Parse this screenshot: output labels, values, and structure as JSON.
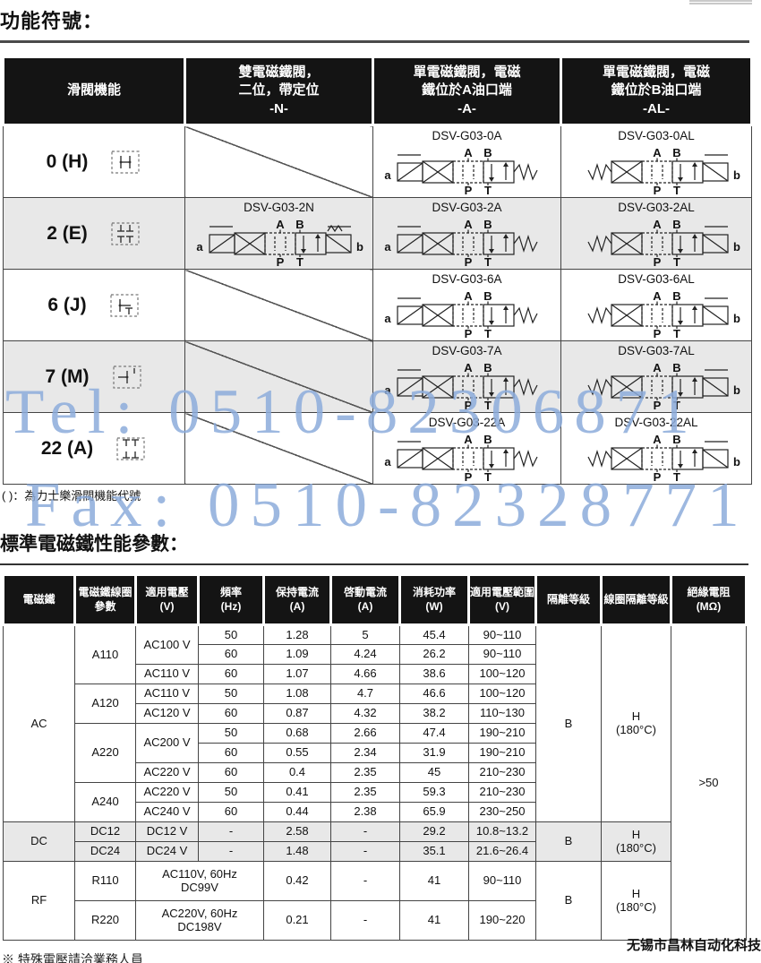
{
  "page": {
    "title1": "功能符號：",
    "note_under_table1": "( )：為力士樂滑閥機能代號",
    "title2": "標準電磁鐵性能參數：",
    "footer_company": "无锡市昌林自动化科技",
    "footer_note": "※ 特殊電壓請洽業務人員",
    "watermark_tel": "Tel: 0510-82306871",
    "watermark_fax": "Fax: 0510-82328771",
    "watermark_color": "#8cabda",
    "header_bg": "#141414",
    "row_gray": "#e8e8e8"
  },
  "table1": {
    "headers": {
      "col1": "滑閥機能",
      "col2_line1": "雙電磁鐵閥，",
      "col2_line2": "二位，帶定位",
      "col2_code": "-N-",
      "col3_line1": "單電磁鐵閥，電磁",
      "col3_line2": "鐵位於A油口端",
      "col3_code": "-A-",
      "col4_line1": "單電磁鐵閥，電磁",
      "col4_line2": "鐵位於B油口端",
      "col4_code": "-AL-"
    },
    "port_labels": {
      "a": "a",
      "b": "b",
      "A": "A",
      "B": "B",
      "P": "P",
      "T": "T"
    },
    "rows": [
      {
        "func": "0 (H)",
        "n": "",
        "a": "DSV-G03-0A",
        "al": "DSV-G03-0AL"
      },
      {
        "func": "2 (E)",
        "n": "DSV-G03-2N",
        "a": "DSV-G03-2A",
        "al": "DSV-G03-2AL"
      },
      {
        "func": "6 (J)",
        "n": "",
        "a": "DSV-G03-6A",
        "al": "DSV-G03-6AL"
      },
      {
        "func": "7 (M)",
        "n": "",
        "a": "DSV-G03-7A",
        "al": "DSV-G03-7AL"
      },
      {
        "func": "22 (A)",
        "n": "",
        "a": "DSV-G03-22A",
        "al": "DSV-G03-22AL"
      }
    ]
  },
  "table2": {
    "headers": {
      "solenoid": "電磁鐵",
      "coil_param": "電磁鐵線圈參數",
      "voltage": "適用電壓",
      "voltage_unit": "(V)",
      "frequency": "頻率",
      "frequency_unit": "(Hz)",
      "holding_current": "保持電流",
      "holding_unit": "(A)",
      "inrush_current": "啓動電流",
      "inrush_unit": "(A)",
      "power": "消耗功率",
      "power_unit": "(W)",
      "voltage_range": "適用電壓範圍",
      "range_unit": "(V)",
      "isolation": "隔離等級",
      "coil_isolation": "線圈隔離等級",
      "resistance": "絕緣電阻",
      "resistance_unit": "(MΩ)"
    },
    "groups": {
      "ac": {
        "name": "AC",
        "iso": "B",
        "coil_iso_1": "H",
        "coil_iso_2": "(180°C)"
      },
      "dc": {
        "name": "DC",
        "iso": "B",
        "coil_iso_1": "H",
        "coil_iso_2": "(180°C)"
      },
      "rf": {
        "name": "RF",
        "iso": "B",
        "coil_iso_1": "H",
        "coil_iso_2": "(180°C)"
      }
    },
    "resistance_value": ">50",
    "rows": [
      {
        "coil": "A110",
        "volt": "AC100 V",
        "freq": "50",
        "hold": "1.28",
        "inrush": "5",
        "power": "45.4",
        "range": "90~110"
      },
      {
        "freq": "60",
        "hold": "1.09",
        "inrush": "4.24",
        "power": "26.2",
        "range": "90~110"
      },
      {
        "volt": "AC110 V",
        "freq": "60",
        "hold": "1.07",
        "inrush": "4.66",
        "power": "38.6",
        "range": "100~120"
      },
      {
        "coil": "A120",
        "volt": "AC110 V",
        "freq": "50",
        "hold": "1.08",
        "inrush": "4.7",
        "power": "46.6",
        "range": "100~120"
      },
      {
        "volt": "AC120 V",
        "freq": "60",
        "hold": "0.87",
        "inrush": "4.32",
        "power": "38.2",
        "range": "110~130"
      },
      {
        "coil": "A220",
        "volt": "AC200 V",
        "freq": "50",
        "hold": "0.68",
        "inrush": "2.66",
        "power": "47.4",
        "range": "190~210"
      },
      {
        "freq": "60",
        "hold": "0.55",
        "inrush": "2.34",
        "power": "31.9",
        "range": "190~210"
      },
      {
        "volt": "AC220 V",
        "freq": "60",
        "hold": "0.4",
        "inrush": "2.35",
        "power": "45",
        "range": "210~230"
      },
      {
        "coil": "A240",
        "volt": "AC220 V",
        "freq": "50",
        "hold": "0.41",
        "inrush": "2.35",
        "power": "59.3",
        "range": "210~230"
      },
      {
        "volt": "AC240 V",
        "freq": "60",
        "hold": "0.44",
        "inrush": "2.38",
        "power": "65.9",
        "range": "230~250"
      },
      {
        "coil": "DC12",
        "volt": "DC12 V",
        "freq": "-",
        "hold": "2.58",
        "inrush": "-",
        "power": "29.2",
        "range": "10.8~13.2"
      },
      {
        "coil": "DC24",
        "volt": "DC24 V",
        "freq": "-",
        "hold": "1.48",
        "inrush": "-",
        "power": "35.1",
        "range": "21.6~26.4"
      },
      {
        "coil": "R110",
        "volt1": "AC110V, 60Hz",
        "volt2": "DC99V",
        "hold": "0.42",
        "inrush": "-",
        "power": "41",
        "range": "90~110"
      },
      {
        "coil": "R220",
        "volt1": "AC220V, 60Hz",
        "volt2": "DC198V",
        "hold": "0.21",
        "inrush": "-",
        "power": "41",
        "range": "190~220"
      }
    ]
  }
}
